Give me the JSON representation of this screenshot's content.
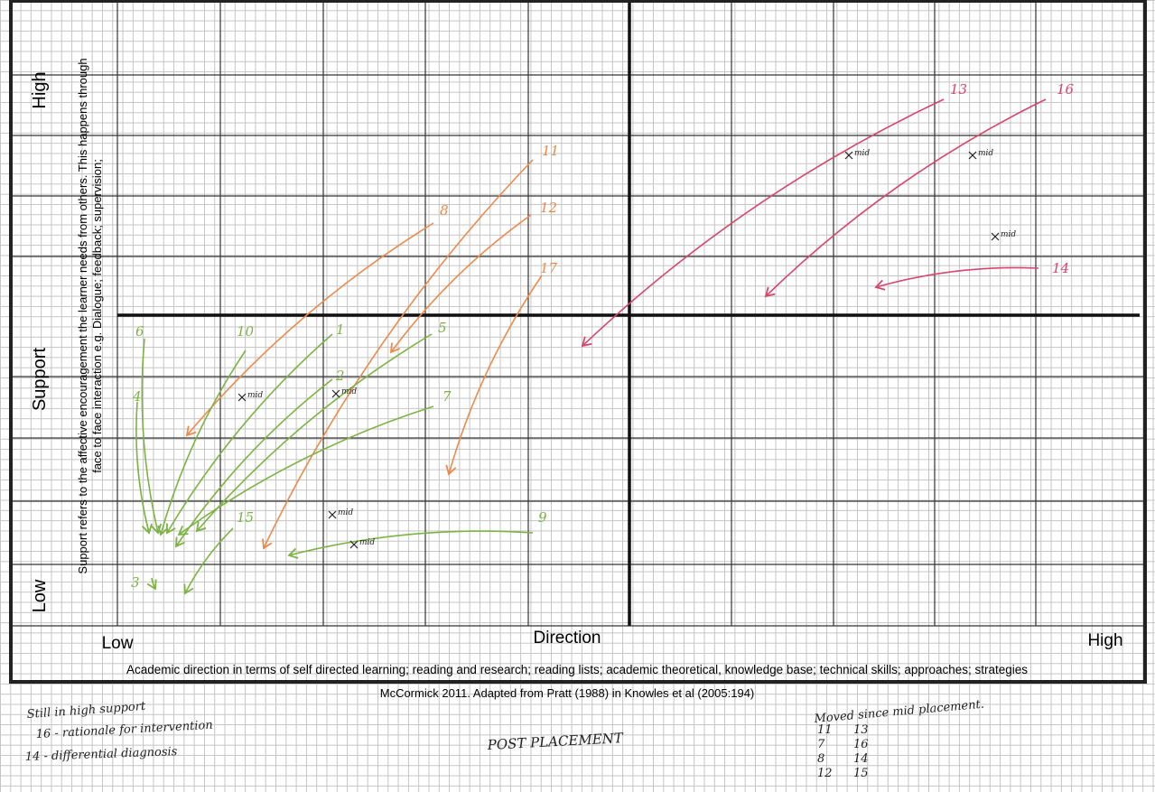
{
  "y_axis": {
    "high": "High",
    "label": "Support",
    "low": "Low",
    "description": [
      "Support refers to the affective encouragement the learner needs from others.  This happens through",
      "face to face interaction e.g. Dialogue; feedback; supervision;"
    ]
  },
  "x_axis": {
    "low": "Low",
    "label": "Direction",
    "high": "High",
    "description": "Academic direction in terms of self directed learning; reading and research; reading lists; academic theoretical, knowledge base; technical skills; approaches; strategies"
  },
  "citation": "McCormick 2011.  Adapted from Pratt (1988) in Knowles et al (2005:194)",
  "mid_marker": "mid",
  "arrows": [
    {
      "label": "13",
      "color": "#d8456a"
    },
    {
      "label": "16",
      "color": "#d8456a"
    },
    {
      "label": "14",
      "color": "#d8456a"
    },
    {
      "label": "11",
      "color": "#ec8a4c"
    },
    {
      "label": "8",
      "color": "#ec8a4c"
    },
    {
      "label": "12",
      "color": "#ec8a4c"
    },
    {
      "label": "17",
      "color": "#ec8a4c"
    },
    {
      "label": "1",
      "color": "#7cb342"
    },
    {
      "label": "2",
      "color": "#7cb342"
    },
    {
      "label": "5",
      "color": "#7cb342"
    },
    {
      "label": "7",
      "color": "#7cb342"
    },
    {
      "label": "9",
      "color": "#7cb342"
    },
    {
      "label": "15",
      "color": "#7cb342"
    },
    {
      "label": "10",
      "color": "#7cb342"
    },
    {
      "label": "6",
      "color": "#7cb342"
    },
    {
      "label": "4",
      "color": "#7cb342"
    },
    {
      "label": "3",
      "color": "#7cb342"
    }
  ],
  "notes_left": [
    "Still in high support",
    "16 - rationale for intervention",
    "14 - differential diagnosis"
  ],
  "notes_center": "POST PLACEMENT",
  "notes_right": {
    "title": "Moved since mid placement.",
    "pairs": [
      [
        "11",
        "13"
      ],
      [
        "7",
        "16"
      ],
      [
        "8",
        "14"
      ],
      [
        "12",
        "15"
      ]
    ]
  }
}
